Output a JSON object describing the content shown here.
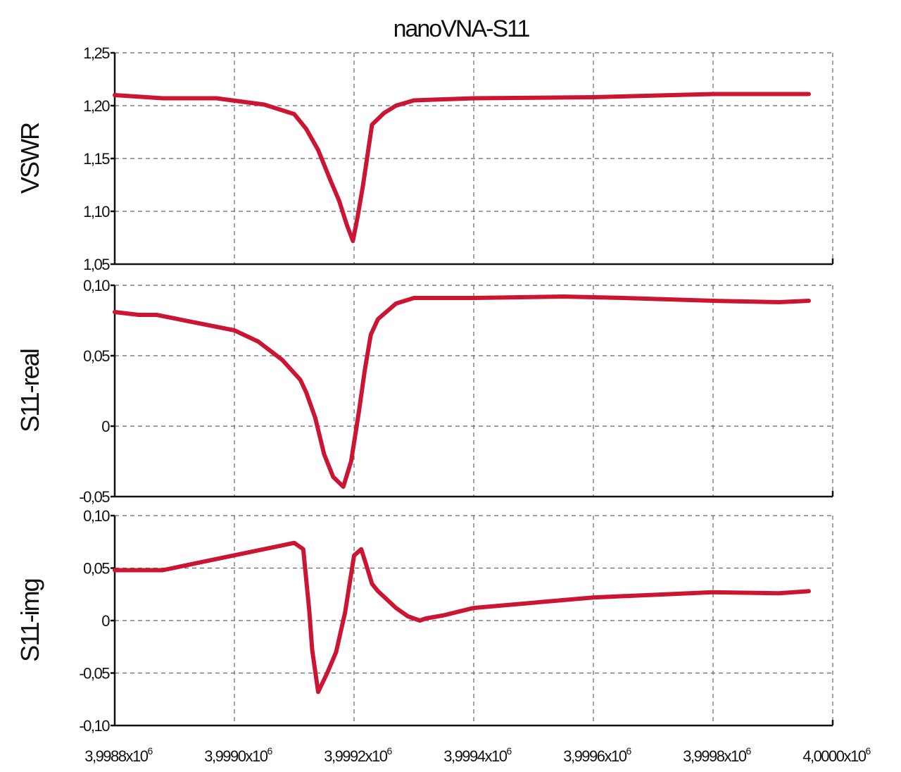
{
  "chart_data": {
    "title": "nanoVNA-S11",
    "type": "line",
    "x_tick_labels": [
      "3,9988x10",
      "3,9990x10",
      "3,9992x10",
      "3,9994x10",
      "3,9996x10",
      "3,9998x10",
      "4,0000x10"
    ],
    "x_tick_exponent": "6",
    "x_ticks": [
      3998800,
      3999000,
      3999200,
      3999400,
      3999600,
      3999800,
      4000000
    ],
    "xlim": [
      3998800,
      4000000
    ],
    "panels": [
      {
        "ylabel": "VSWR",
        "ylim": [
          1.05,
          1.25
        ],
        "y_ticks": [
          1.05,
          1.1,
          1.15,
          1.2,
          1.25
        ],
        "y_tick_labels": [
          "1,05",
          "1,10",
          "1,15",
          "1,20",
          "1,25"
        ],
        "grid": true,
        "color": "#cc1433",
        "x": [
          3998800,
          3998880,
          3998970,
          3999050,
          3999100,
          3999120,
          3999140,
          3999160,
          3999175,
          3999188,
          3999198,
          3999206,
          3999215,
          3999230,
          3999250,
          3999270,
          3999300,
          3999400,
          3999600,
          3999800,
          3999960
        ],
        "y": [
          1.21,
          1.207,
          1.207,
          1.201,
          1.192,
          1.178,
          1.158,
          1.13,
          1.11,
          1.087,
          1.072,
          1.095,
          1.125,
          1.182,
          1.193,
          1.2,
          1.205,
          1.207,
          1.208,
          1.211,
          1.211
        ]
      },
      {
        "ylabel": "S11-real",
        "ylim": [
          -0.05,
          0.1
        ],
        "y_ticks": [
          -0.05,
          0,
          0.05,
          0.1
        ],
        "y_tick_labels": [
          "-0,05",
          "0",
          "0,05",
          "0,10"
        ],
        "grid": true,
        "color": "#cc1433",
        "x": [
          3998800,
          3998840,
          3998870,
          3999000,
          3999040,
          3999080,
          3999110,
          3999120,
          3999135,
          3999150,
          3999165,
          3999182,
          3999195,
          3999208,
          3999218,
          3999228,
          3999240,
          3999270,
          3999300,
          3999400,
          3999550,
          3999650,
          3999800,
          3999910,
          3999960
        ],
        "y": [
          0.081,
          0.079,
          0.079,
          0.068,
          0.06,
          0.047,
          0.033,
          0.024,
          0.006,
          -0.02,
          -0.036,
          -0.043,
          -0.025,
          0.01,
          0.04,
          0.065,
          0.076,
          0.087,
          0.091,
          0.091,
          0.092,
          0.091,
          0.089,
          0.088,
          0.089
        ]
      },
      {
        "ylabel": "S11-img",
        "ylim": [
          -0.1,
          0.1
        ],
        "y_ticks": [
          -0.1,
          -0.05,
          0,
          0.05,
          0.1
        ],
        "y_tick_labels": [
          "-0,10",
          "-0,05",
          "0",
          "0,05",
          "0,10"
        ],
        "grid": true,
        "color": "#cc1433",
        "x": [
          3998800,
          3998880,
          3999100,
          3999115,
          3999125,
          3999130,
          3999140,
          3999155,
          3999170,
          3999185,
          3999200,
          3999212,
          3999222,
          3999230,
          3999240,
          3999255,
          3999270,
          3999290,
          3999310,
          3999320,
          3999350,
          3999400,
          3999600,
          3999800,
          3999910,
          3999960
        ],
        "y": [
          0.048,
          0.048,
          0.074,
          0.068,
          0.01,
          -0.028,
          -0.068,
          -0.05,
          -0.03,
          0.008,
          0.062,
          0.068,
          0.05,
          0.035,
          0.028,
          0.02,
          0.012,
          0.004,
          0.0,
          0.002,
          0.005,
          0.012,
          0.022,
          0.027,
          0.026,
          0.028
        ]
      }
    ]
  }
}
